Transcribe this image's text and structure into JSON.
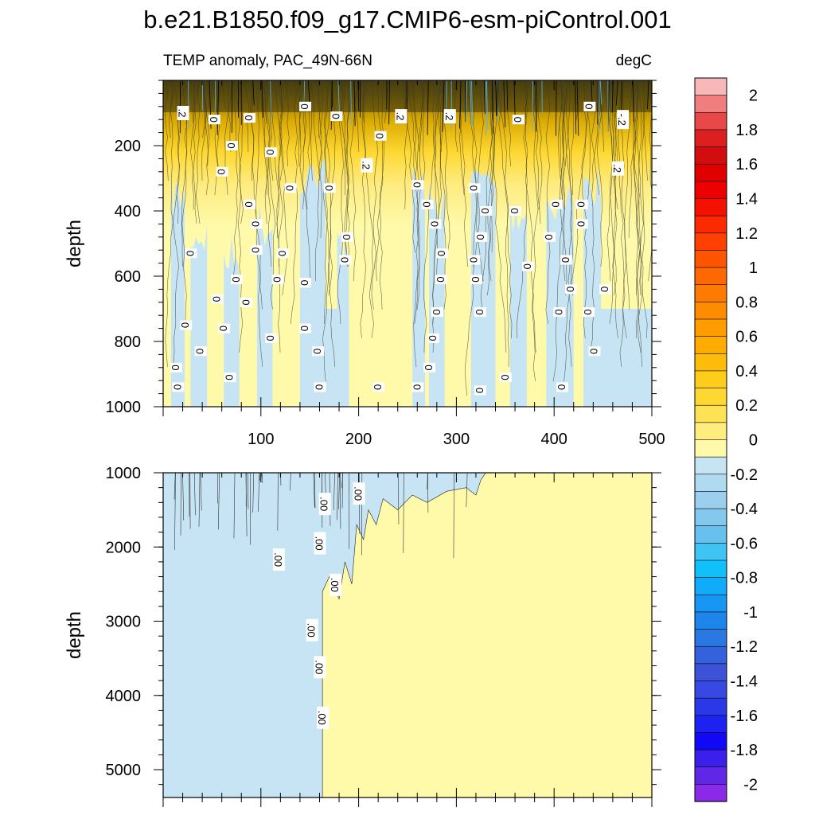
{
  "chart_data": {
    "type": "heatmap",
    "title": "b.e21.B1850.f09_g17.CMIP6-esm-piControl.001",
    "left_subtitle": "TEMP anomaly, PAC_49N-66N",
    "right_subtitle": "degC",
    "panels": [
      {
        "name": "upper",
        "ylabel": "depth",
        "xlim": [
          0,
          500
        ],
        "ylim": [
          0,
          1000
        ],
        "y_reversed": true,
        "xticks": [
          "100",
          "200",
          "300",
          "400",
          "500"
        ],
        "yticks": [
          "200",
          "400",
          "600",
          "800",
          "1000"
        ],
        "contour_labels": [
          {
            "x": 20,
            "y": 100,
            "text": ".2"
          },
          {
            "x": 52,
            "y": 120,
            "text": "0"
          },
          {
            "x": 88,
            "y": 115,
            "text": "0"
          },
          {
            "x": 145,
            "y": 80,
            "text": "0"
          },
          {
            "x": 177,
            "y": 110,
            "text": "0"
          },
          {
            "x": 243,
            "y": 110,
            "text": ".2"
          },
          {
            "x": 293,
            "y": 110,
            "text": ".2"
          },
          {
            "x": 363,
            "y": 120,
            "text": "0"
          },
          {
            "x": 436,
            "y": 80,
            "text": "0"
          },
          {
            "x": 470,
            "y": 120,
            "text": "-.2"
          },
          {
            "x": 222,
            "y": 170,
            "text": "0"
          },
          {
            "x": 70,
            "y": 200,
            "text": "0"
          },
          {
            "x": 110,
            "y": 220,
            "text": "0"
          },
          {
            "x": 208,
            "y": 260,
            "text": ".2"
          },
          {
            "x": 60,
            "y": 280,
            "text": "0"
          },
          {
            "x": 465,
            "y": 270,
            "text": ".2"
          },
          {
            "x": 130,
            "y": 330,
            "text": "0"
          },
          {
            "x": 170,
            "y": 330,
            "text": "0"
          },
          {
            "x": 260,
            "y": 320,
            "text": "0"
          },
          {
            "x": 318,
            "y": 330,
            "text": "0"
          },
          {
            "x": 88,
            "y": 380,
            "text": "0"
          },
          {
            "x": 270,
            "y": 380,
            "text": "0"
          },
          {
            "x": 330,
            "y": 400,
            "text": "0"
          },
          {
            "x": 360,
            "y": 400,
            "text": "0"
          },
          {
            "x": 402,
            "y": 380,
            "text": "0"
          },
          {
            "x": 428,
            "y": 380,
            "text": "0"
          },
          {
            "x": 95,
            "y": 440,
            "text": "0"
          },
          {
            "x": 278,
            "y": 440,
            "text": "0"
          },
          {
            "x": 428,
            "y": 440,
            "text": "0"
          },
          {
            "x": 188,
            "y": 480,
            "text": "0"
          },
          {
            "x": 325,
            "y": 480,
            "text": "0"
          },
          {
            "x": 395,
            "y": 480,
            "text": "0"
          },
          {
            "x": 28,
            "y": 530,
            "text": "0"
          },
          {
            "x": 95,
            "y": 520,
            "text": "0"
          },
          {
            "x": 122,
            "y": 530,
            "text": "0"
          },
          {
            "x": 285,
            "y": 530,
            "text": "0"
          },
          {
            "x": 186,
            "y": 550,
            "text": "0"
          },
          {
            "x": 318,
            "y": 550,
            "text": "0"
          },
          {
            "x": 373,
            "y": 570,
            "text": "0"
          },
          {
            "x": 412,
            "y": 550,
            "text": "0"
          },
          {
            "x": 75,
            "y": 610,
            "text": "0"
          },
          {
            "x": 117,
            "y": 610,
            "text": "0"
          },
          {
            "x": 145,
            "y": 620,
            "text": "0"
          },
          {
            "x": 284,
            "y": 610,
            "text": "0"
          },
          {
            "x": 320,
            "y": 610,
            "text": "0"
          },
          {
            "x": 55,
            "y": 670,
            "text": "0"
          },
          {
            "x": 85,
            "y": 680,
            "text": "0"
          },
          {
            "x": 417,
            "y": 640,
            "text": "0"
          },
          {
            "x": 452,
            "y": 640,
            "text": "0"
          },
          {
            "x": 280,
            "y": 710,
            "text": "0"
          },
          {
            "x": 324,
            "y": 710,
            "text": "0"
          },
          {
            "x": 405,
            "y": 710,
            "text": "0"
          },
          {
            "x": 435,
            "y": 710,
            "text": "0"
          },
          {
            "x": 23,
            "y": 750,
            "text": "0"
          },
          {
            "x": 62,
            "y": 760,
            "text": "0"
          },
          {
            "x": 145,
            "y": 760,
            "text": "0"
          },
          {
            "x": 110,
            "y": 790,
            "text": "0"
          },
          {
            "x": 276,
            "y": 790,
            "text": "0"
          },
          {
            "x": 38,
            "y": 830,
            "text": "0"
          },
          {
            "x": 158,
            "y": 830,
            "text": "0"
          },
          {
            "x": 441,
            "y": 830,
            "text": "0"
          },
          {
            "x": 13,
            "y": 880,
            "text": "0"
          },
          {
            "x": 272,
            "y": 880,
            "text": "0"
          },
          {
            "x": 68,
            "y": 910,
            "text": "0"
          },
          {
            "x": 350,
            "y": 910,
            "text": "0"
          },
          {
            "x": 15,
            "y": 940,
            "text": "0"
          },
          {
            "x": 160,
            "y": 940,
            "text": "0"
          },
          {
            "x": 220,
            "y": 940,
            "text": "0"
          },
          {
            "x": 260,
            "y": 940,
            "text": "0"
          },
          {
            "x": 324,
            "y": 950,
            "text": "0"
          },
          {
            "x": 408,
            "y": 940,
            "text": "0"
          }
        ]
      },
      {
        "name": "lower",
        "ylabel": "depth",
        "xlim": [
          0,
          500
        ],
        "ylim": [
          1000,
          5375
        ],
        "y_reversed": true,
        "yticks": [
          "1000",
          "2000",
          "3000",
          "4000",
          "5000"
        ],
        "negative_region_max_x": 163,
        "contour_labels": [
          {
            "x": 200,
            "y": 1280,
            "text": ".00"
          },
          {
            "x": 165,
            "y": 1420,
            "text": ".00"
          },
          {
            "x": 160,
            "y": 1950,
            "text": ".00"
          },
          {
            "x": 118,
            "y": 2170,
            "text": ".00"
          },
          {
            "x": 176,
            "y": 2510,
            "text": ".00"
          },
          {
            "x": 152,
            "y": 3120,
            "text": ".00"
          },
          {
            "x": 160,
            "y": 3620,
            "text": ".00"
          },
          {
            "x": 163,
            "y": 4300,
            "text": ".00"
          }
        ]
      }
    ],
    "colorbar": {
      "labels": [
        "2",
        "1.8",
        "1.6",
        "1.4",
        "1.2",
        "1",
        "0.8",
        "0.6",
        "0.4",
        "0.2",
        "0",
        "-0.2",
        "-0.4",
        "-0.6",
        "-0.8",
        "-1",
        "-1.2",
        "-1.4",
        "-1.6",
        "-1.8",
        "-2"
      ],
      "colors": [
        "#f8b8b8",
        "#f07e7e",
        "#e84848",
        "#dc2020",
        "#d30d0d",
        "#e10000",
        "#ec0000",
        "#f51000",
        "#fc2a00",
        "#fe4000",
        "#fe5500",
        "#fe6800",
        "#fe7a00",
        "#fe8c00",
        "#fe9c00",
        "#feac00",
        "#febc0a",
        "#fecc1a",
        "#fed832",
        "#fee255",
        "#feec80",
        "#fefaaa",
        "#c6e4f4",
        "#b0daf0",
        "#9ad0ee",
        "#84c8ee",
        "#68c0ee",
        "#40c4f4",
        "#10c0f8",
        "#10acfa",
        "#1896f4",
        "#1e86ea",
        "#2a78e2",
        "#3462dc",
        "#3c52d8",
        "#3848e2",
        "#2a38e8",
        "#1e22f0",
        "#1208f8",
        "#3a20ea",
        "#6028e6",
        "#8a2ae6"
      ]
    }
  }
}
